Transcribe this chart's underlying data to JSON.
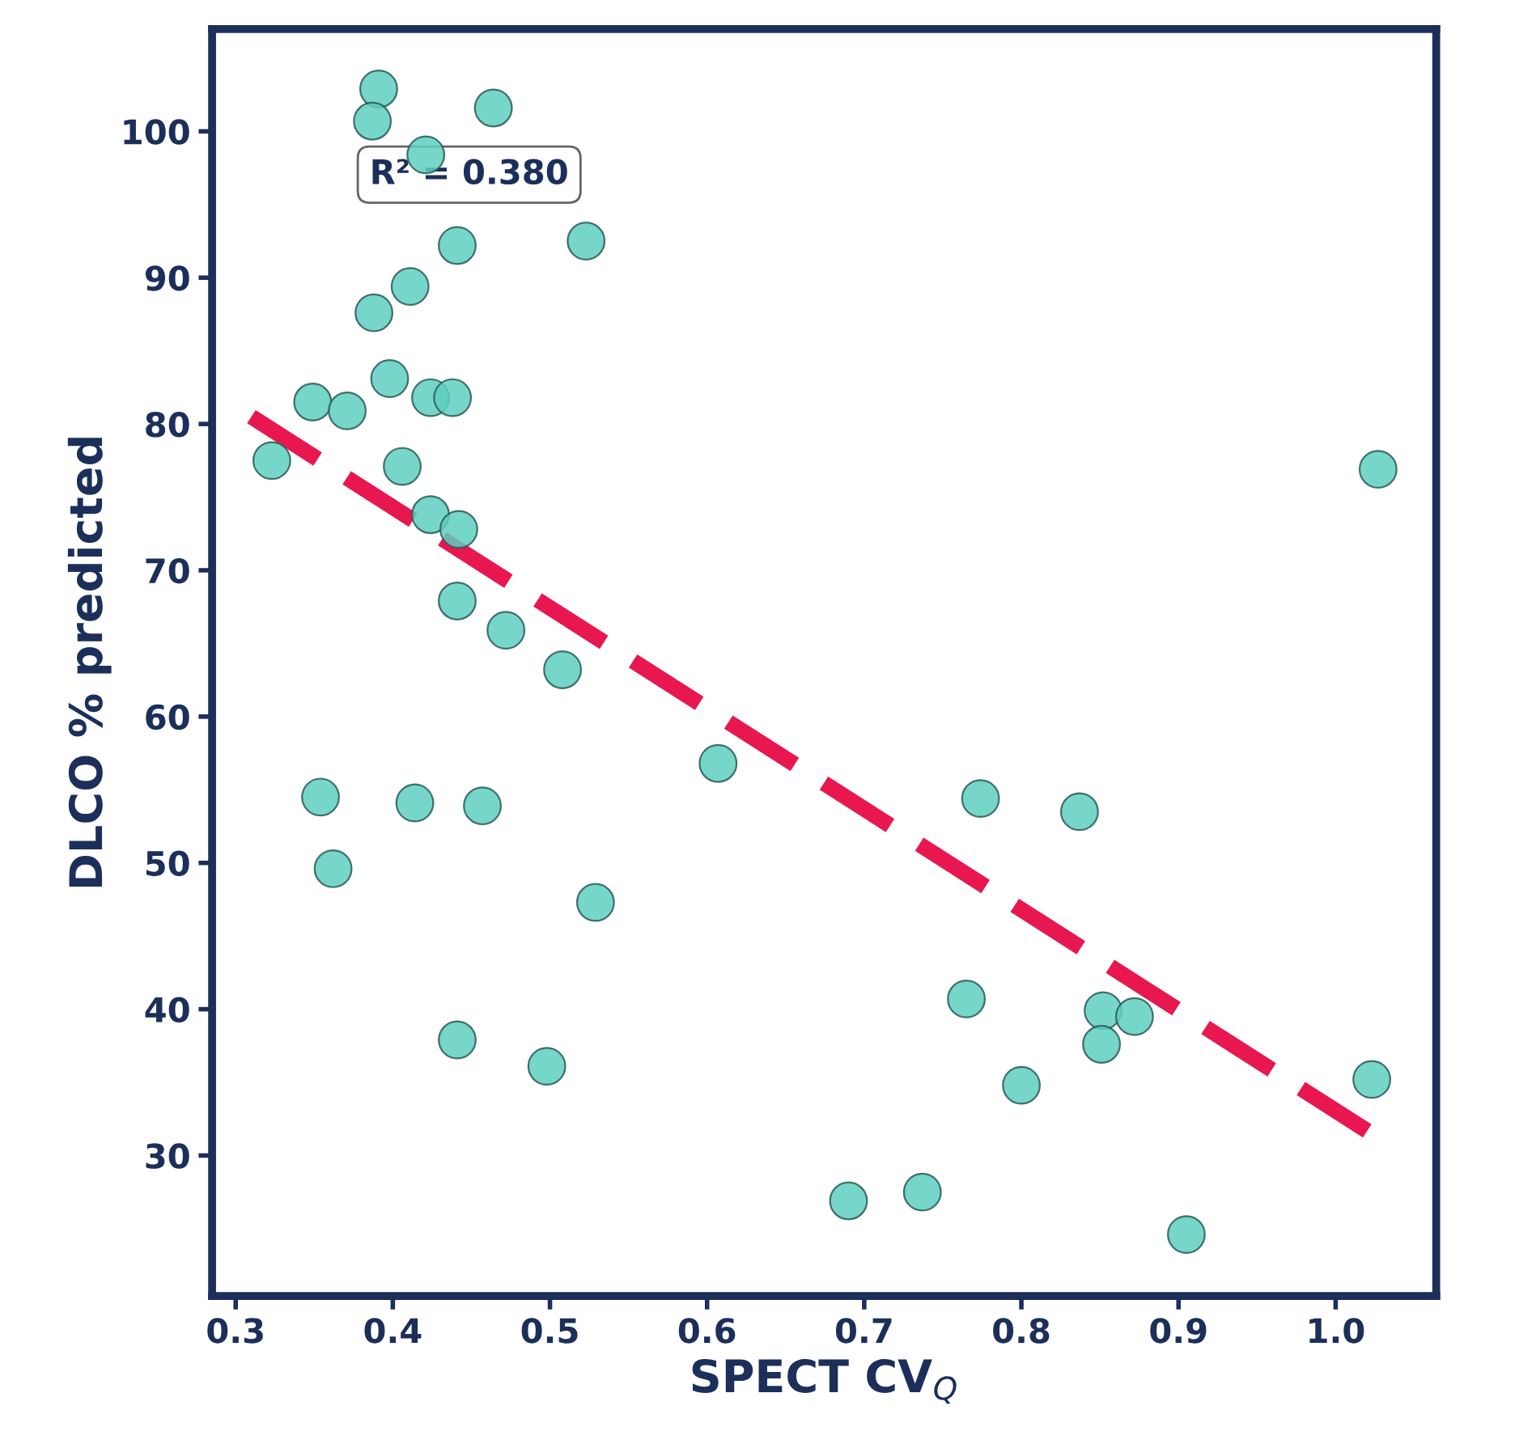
{
  "chart_data": {
    "type": "scatter",
    "xlabel": "SPECT CV$_{Q}$",
    "ylabel": "DLCO % predicted",
    "annotations": [
      "R² = 0.380"
    ],
    "xlim": [
      0.285,
      1.064
    ],
    "ylim": [
      20.4,
      107.0
    ],
    "xticks": [
      0.3,
      0.4,
      0.5,
      0.6,
      0.7,
      0.8,
      0.9,
      {
        "value": 1.0,
        "label": "1.0"
      }
    ],
    "yticks": [
      30,
      40,
      50,
      60,
      70,
      80,
      90,
      100
    ],
    "grid": false,
    "legend": false,
    "series": [
      {
        "marker": "circle",
        "color": "#5ecfc0",
        "x": [
          0.391,
          0.387,
          0.464,
          0.421,
          0.441,
          0.523,
          0.411,
          0.388,
          0.398,
          0.349,
          0.371,
          0.424,
          0.438,
          0.323,
          0.406,
          0.424,
          0.442,
          0.441,
          0.472,
          0.508,
          0.607,
          0.354,
          0.414,
          0.457,
          0.774,
          0.837,
          0.362,
          0.529,
          0.765,
          0.852,
          0.872,
          0.851,
          0.441,
          0.498,
          0.8,
          1.023,
          1.027,
          0.69,
          0.737,
          0.905
        ],
        "values": [
          102.9,
          100.7,
          101.6,
          98.4,
          92.2,
          92.5,
          89.4,
          87.6,
          83.1,
          81.5,
          80.9,
          81.8,
          81.8,
          77.5,
          77.1,
          73.8,
          72.8,
          67.9,
          65.9,
          63.2,
          56.8,
          54.5,
          54.1,
          53.9,
          54.4,
          53.5,
          49.6,
          47.3,
          40.7,
          39.9,
          39.5,
          37.6,
          37.9,
          36.1,
          34.8,
          35.2,
          76.9,
          26.9,
          27.5,
          24.6
        ]
      },
      {
        "type": "line",
        "color": "#e8174f",
        "line_style": "dashed",
        "x": [
          0.31,
          1.03
        ],
        "values": [
          80.5,
          31.0
        ]
      }
    ]
  }
}
